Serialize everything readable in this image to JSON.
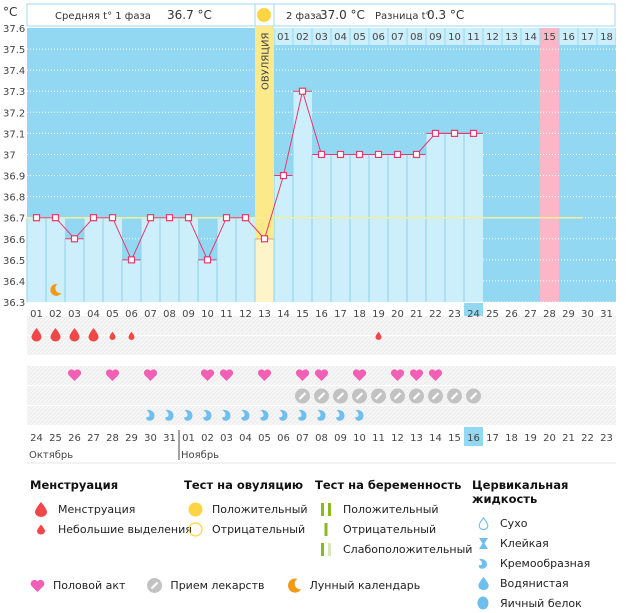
{
  "header": {
    "unit": "°C",
    "phase1_label": "Средняя t° 1 фаза",
    "phase1_value": "36.7 °C",
    "phase2_label": "2 фаза",
    "phase2_value": "37.0 °C",
    "diff_label": "Разница t°",
    "diff_value": "0.3 °C",
    "ovulation_label": "ОВУЛЯЦИЯ"
  },
  "colors": {
    "chart_bg": "#93d8f2",
    "filled_bar": "#cdeefb",
    "line": "#e8386d",
    "ovulation": "#fbe98a",
    "ovulation_light": "#fdf5c9",
    "menses_day": "#fbb6c8",
    "coverline": "#f5ef9a",
    "blood": "#f04848",
    "heart": "#f25fb4",
    "pill": "#c2c2c2",
    "mucus": "#6ebfee",
    "moon": "#f39a14",
    "sun": "#fdd543",
    "test_green": "#8cba1e",
    "weekend": "#e83a6a",
    "today": "#93d8f2"
  },
  "chart_data": {
    "type": "line",
    "title": "",
    "ylabel": "°C",
    "ylim": [
      36.3,
      37.6
    ],
    "yticks": [
      "37.6",
      "37.5",
      "37.4",
      "37.3",
      "37.2",
      "37.1",
      "37",
      "36.9",
      "36.8",
      "36.7",
      "36.6",
      "36.5",
      "36.4",
      "36.3"
    ],
    "cycle_days": [
      "01",
      "02",
      "03",
      "04",
      "05",
      "06",
      "07",
      "08",
      "09",
      "10",
      "11",
      "12",
      "13",
      "14",
      "15",
      "16",
      "17",
      "18",
      "19",
      "20",
      "21",
      "22",
      "23",
      "24",
      "25",
      "26",
      "27",
      "28",
      "29",
      "30",
      "31"
    ],
    "temperatures": [
      36.7,
      36.7,
      36.6,
      36.7,
      36.7,
      36.5,
      36.7,
      36.7,
      36.7,
      36.5,
      36.7,
      36.7,
      36.6,
      36.9,
      37.3,
      37.0,
      37.0,
      37.0,
      37.0,
      37.0,
      37.0,
      37.1,
      37.1,
      37.1,
      null,
      null,
      null,
      null,
      null,
      null,
      null
    ],
    "coverline": 36.7,
    "ovulation_day": 13,
    "phase2_labels": [
      "01",
      "02",
      "03",
      "04",
      "05",
      "06",
      "07",
      "08",
      "09",
      "10",
      "11",
      "12",
      "13",
      "14",
      "15",
      "16",
      "17",
      "18"
    ],
    "highlight_phase2_day": "15",
    "today_cycle_day": 24,
    "expected_period_day": 28,
    "moon_day": 2,
    "calendar_dates": [
      "24",
      "25",
      "26",
      "27",
      "28",
      "29",
      "30",
      "31",
      "01",
      "02",
      "03",
      "04",
      "05",
      "06",
      "07",
      "08",
      "09",
      "10",
      "11",
      "12",
      "13",
      "14",
      "15",
      "16",
      "17",
      "18",
      "19",
      "20",
      "21",
      "22",
      "23"
    ],
    "weekend_dates_idx": [
      4,
      5,
      11,
      12,
      18,
      19,
      25,
      26
    ],
    "months": [
      {
        "label": "Октябрь",
        "start_idx": 0
      },
      {
        "label": "Ноябрь",
        "start_idx": 8
      }
    ],
    "markers": {
      "menstruation": [
        1,
        2,
        3,
        4
      ],
      "spotting": [
        5,
        6,
        19
      ],
      "intercourse": [
        3,
        5,
        7,
        10,
        11,
        13,
        15,
        16,
        18,
        20,
        21,
        22
      ],
      "medication": [
        15,
        16,
        17,
        18,
        19,
        20,
        21,
        22,
        23,
        24
      ],
      "cervical_creamy": [
        7,
        8,
        9,
        10,
        11,
        12,
        13,
        14,
        15,
        16,
        17,
        18
      ]
    }
  },
  "legend": {
    "menses": {
      "title": "Менструация",
      "items": [
        "Менструация",
        "Небольшие выделения"
      ]
    },
    "ovulation_test": {
      "title": "Тест на овуляцию",
      "items": [
        "Положительный",
        "Отрицательный"
      ]
    },
    "pregnancy_test": {
      "title": "Тест на беременность",
      "items": [
        "Положительный",
        "Отрицательный",
        "Слабоположительный"
      ]
    },
    "cervical": {
      "title": "Цервикальная жидкость",
      "items": [
        "Сухо",
        "Клейкая",
        "Кремообразная",
        "Водянистая",
        "Яичный белок"
      ]
    },
    "bottom": [
      "Половой акт",
      "Прием лекарств",
      "Лунный календарь"
    ]
  }
}
